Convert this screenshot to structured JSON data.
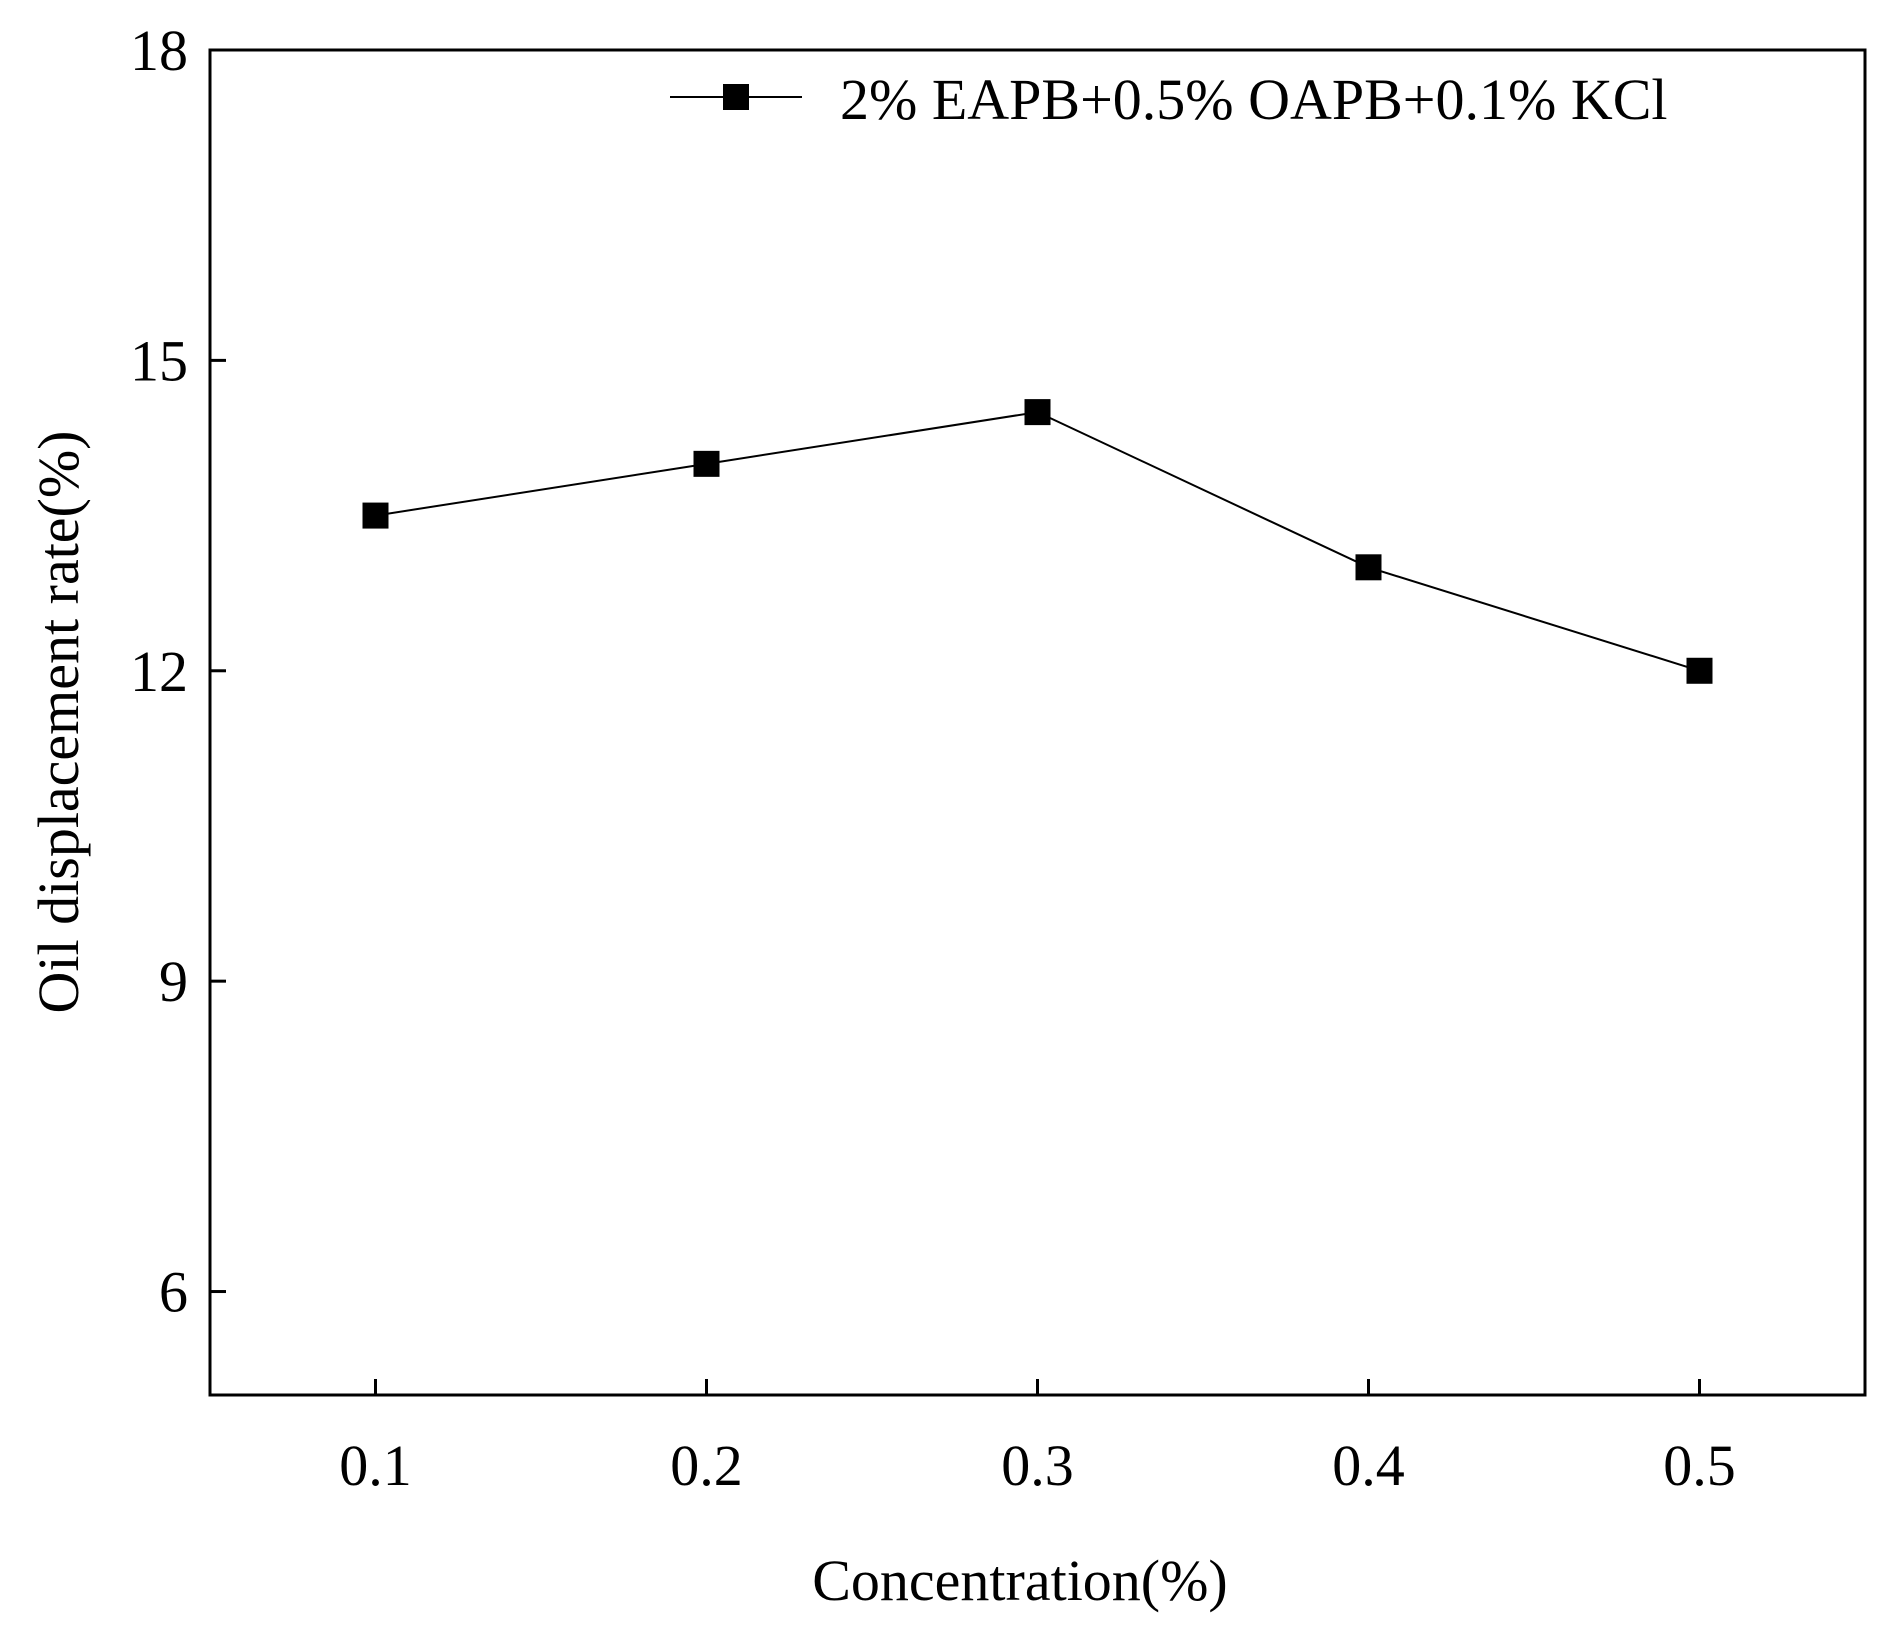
{
  "chart_data": {
    "type": "line",
    "title": "",
    "xlabel": "Concentration(%)",
    "ylabel": "Oil displacement rate(%)",
    "x": [
      0.1,
      0.2,
      0.3,
      0.4,
      0.5
    ],
    "x_tick_labels": [
      "0.1",
      "0.2",
      "0.3",
      "0.4",
      "0.5"
    ],
    "xlim": [
      0.05,
      0.55
    ],
    "y_ticks": [
      6,
      9,
      12,
      15,
      18
    ],
    "y_tick_labels": [
      "6",
      "9",
      "12",
      "15",
      "18"
    ],
    "ylim": [
      5,
      18
    ],
    "grid": false,
    "legend_position": "top-right",
    "series": [
      {
        "name": "2% EAPB+0.5% OAPB+0.1% KCl",
        "marker": "square",
        "color": "#000000",
        "values": [
          13.5,
          14.0,
          14.5,
          13.0,
          12.0
        ]
      }
    ]
  }
}
